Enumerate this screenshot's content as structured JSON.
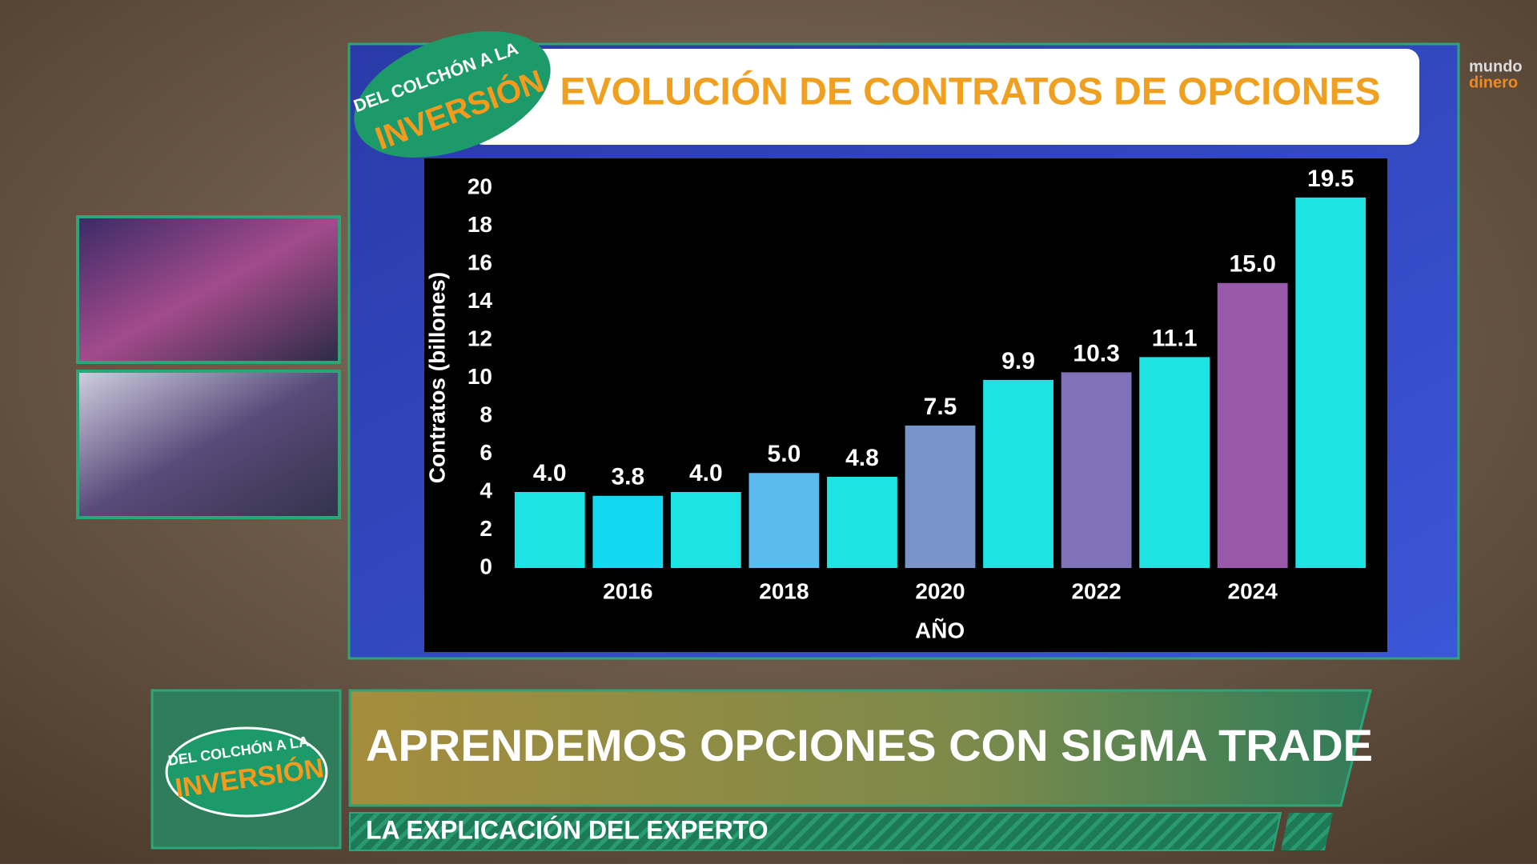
{
  "chart_data": {
    "type": "bar",
    "title": "EVOLUCIÓN DE CONTRATOS DE OPCIONES",
    "y_label": "Contratos (billones)",
    "x_label": "AÑO",
    "categories": [
      null,
      "2016",
      null,
      "2018",
      null,
      "2020",
      null,
      "2022",
      null,
      "2024",
      null
    ],
    "values": [
      4.0,
      3.8,
      4.0,
      5.0,
      4.8,
      7.5,
      9.9,
      10.3,
      11.1,
      15.0,
      19.5
    ],
    "value_labels": [
      "4.0",
      "3.8",
      "4.0",
      "5.0",
      "4.8",
      "7.5",
      "9.9",
      "10.3",
      "11.1",
      "15.0",
      "19.5"
    ],
    "colors": [
      "#1ee3e3",
      "#12d8f0",
      "#1ee3e3",
      "#5bbbec",
      "#1ee3e3",
      "#7894c8",
      "#1ee3e3",
      "#7f72b8",
      "#1ee3e3",
      "#9a58aa",
      "#1ee3e3"
    ],
    "ylim": [
      0,
      20
    ],
    "yticks": [
      0,
      2,
      4,
      6,
      8,
      10,
      12,
      14,
      16,
      18,
      20
    ],
    "grid": false
  },
  "logo": {
    "line1": "DEL COLCHÓN A LA",
    "line2": "INVERSIÓN"
  },
  "brand": {
    "line1": "mundo",
    "line2": "dinero"
  },
  "lower_third": {
    "headline": "APRENDEMOS OPCIONES CON SIGMA TRADE",
    "subline": "LA EXPLICACIÓN DEL EXPERTO"
  }
}
